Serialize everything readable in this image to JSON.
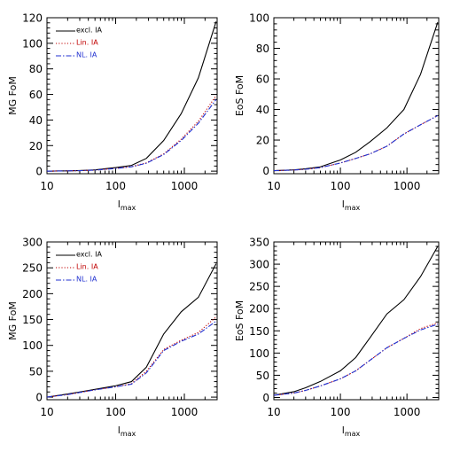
{
  "chart_data": [
    {
      "type": "line",
      "xlabel": "l",
      "xlabel_sub": "max",
      "ylabel": "MG FoM",
      "xscale": "log",
      "xlim": [
        10,
        3000
      ],
      "ylim": [
        -2,
        120
      ],
      "yticks": [
        0,
        20,
        40,
        60,
        80,
        100,
        120
      ],
      "xticks": [
        10,
        100,
        1000
      ],
      "xtick_labels": [
        "10",
        "100",
        "1000"
      ],
      "legend": "top-left",
      "x": [
        10,
        20,
        30,
        50,
        100,
        170,
        280,
        500,
        900,
        1600,
        2900
      ],
      "series": [
        {
          "name": "excl. IA",
          "color": "#000000",
          "style": "solid",
          "values": [
            0,
            0.2,
            0.5,
            1,
            2.8,
            4.5,
            10,
            24,
            45,
            73,
            117
          ]
        },
        {
          "name": "Lin. IA",
          "color": "#c00000",
          "style": "dotted",
          "values": [
            0,
            0.2,
            0.4,
            0.8,
            2.2,
            3.5,
            6.5,
            13.5,
            25,
            39,
            59
          ]
        },
        {
          "name": "NL. IA",
          "color": "#2030d0",
          "style": "dashdot",
          "values": [
            0,
            0.2,
            0.4,
            0.8,
            2.1,
            3.4,
            6.2,
            13,
            24,
            37.5,
            56
          ]
        }
      ]
    },
    {
      "type": "line",
      "xlabel": "l",
      "xlabel_sub": "max",
      "ylabel": "EoS FoM",
      "xscale": "log",
      "xlim": [
        10,
        3000
      ],
      "ylim": [
        -2,
        100
      ],
      "yticks": [
        0,
        20,
        40,
        60,
        80,
        100
      ],
      "xticks": [
        10,
        100,
        1000
      ],
      "xtick_labels": [
        "10",
        "100",
        "1000"
      ],
      "legend": "none",
      "x": [
        10,
        20,
        30,
        50,
        100,
        170,
        280,
        500,
        900,
        1600,
        2900
      ],
      "series": [
        {
          "name": "excl. IA",
          "color": "#000000",
          "style": "solid",
          "values": [
            0,
            0.5,
            1.2,
            2.5,
            7,
            12,
            19,
            28,
            40,
            63,
            97
          ]
        },
        {
          "name": "Lin. IA",
          "color": "#c00000",
          "style": "dotted",
          "values": [
            0,
            0.4,
            0.9,
            2,
            5,
            8,
            11,
            16,
            24,
            30,
            36
          ]
        },
        {
          "name": "NL. IA",
          "color": "#2030d0",
          "style": "dashdot",
          "values": [
            0,
            0.4,
            0.9,
            2,
            5,
            8,
            11,
            16,
            24,
            30,
            36
          ]
        }
      ]
    },
    {
      "type": "line",
      "xlabel": "l",
      "xlabel_sub": "max",
      "ylabel": "MG FoM",
      "xscale": "log",
      "xlim": [
        10,
        3000
      ],
      "ylim": [
        -5,
        300
      ],
      "yticks": [
        0,
        50,
        100,
        150,
        200,
        250,
        300
      ],
      "xticks": [
        10,
        100,
        1000
      ],
      "xtick_labels": [
        "10",
        "100",
        "1000"
      ],
      "legend": "top-left",
      "x": [
        10,
        20,
        30,
        50,
        100,
        170,
        280,
        500,
        900,
        1600,
        2900
      ],
      "series": [
        {
          "name": "excl. IA",
          "color": "#000000",
          "style": "solid",
          "values": [
            0,
            6,
            10,
            15,
            22,
            30,
            58,
            122,
            165,
            193,
            258
          ]
        },
        {
          "name": "Lin. IA",
          "color": "#c00000",
          "style": "dotted",
          "values": [
            0,
            5,
            9,
            14,
            20,
            26,
            50,
            92,
            110,
            125,
            155
          ]
        },
        {
          "name": "NL. IA",
          "color": "#2030d0",
          "style": "dashdot",
          "values": [
            0,
            5,
            9,
            14,
            20,
            25,
            47,
            90,
            108,
            122,
            147
          ]
        }
      ]
    },
    {
      "type": "line",
      "xlabel": "l",
      "xlabel_sub": "max",
      "ylabel": "EoS FoM",
      "xscale": "log",
      "xlim": [
        10,
        3000
      ],
      "ylim": [
        -5,
        350
      ],
      "yticks": [
        0,
        50,
        100,
        150,
        200,
        250,
        300,
        350
      ],
      "xticks": [
        10,
        100,
        1000
      ],
      "xtick_labels": [
        "10",
        "100",
        "1000"
      ],
      "legend": "none",
      "x": [
        10,
        20,
        30,
        50,
        100,
        170,
        280,
        500,
        900,
        1600,
        2900
      ],
      "series": [
        {
          "name": "excl. IA",
          "color": "#000000",
          "style": "solid",
          "values": [
            5,
            13,
            22,
            36,
            60,
            90,
            135,
            188,
            220,
            272,
            340
          ]
        },
        {
          "name": "Lin. IA",
          "color": "#c00000",
          "style": "dotted",
          "values": [
            5,
            10,
            16,
            26,
            42,
            60,
            84,
            112,
            133,
            155,
            168
          ]
        },
        {
          "name": "NL. IA",
          "color": "#2030d0",
          "style": "dashdot",
          "values": [
            5,
            10,
            16,
            26,
            42,
            60,
            84,
            112,
            133,
            152,
            165
          ]
        }
      ]
    }
  ]
}
